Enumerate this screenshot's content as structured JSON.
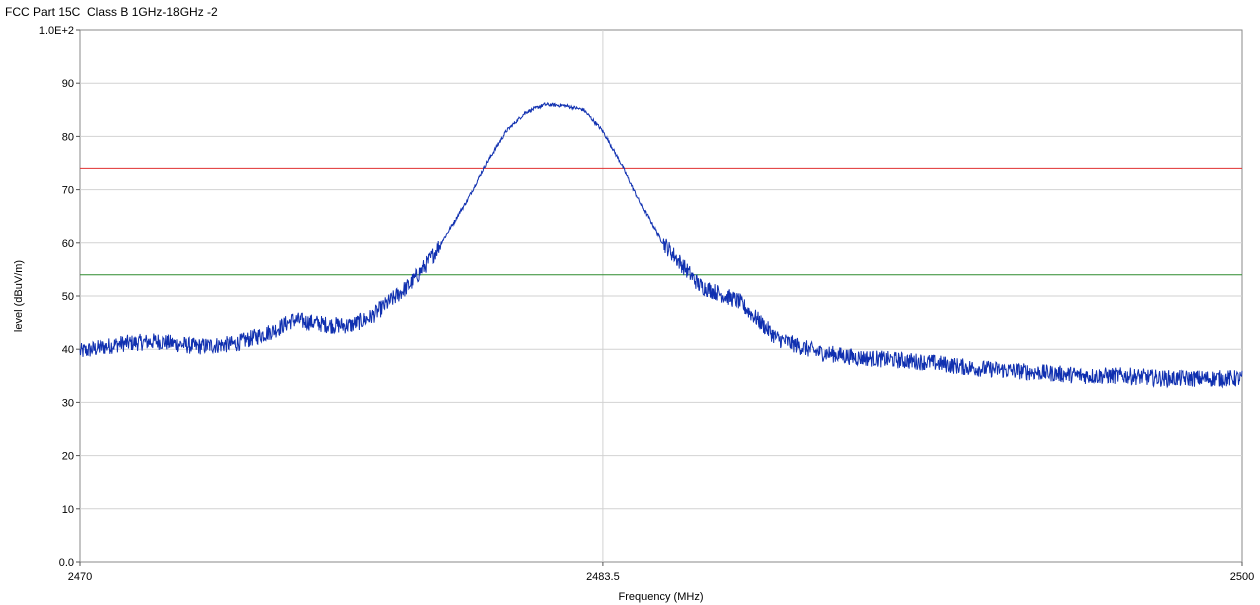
{
  "chart_data": {
    "type": "line",
    "title": "FCC Part 15C  Class B 1GHz-18GHz -2",
    "xlabel": "Frequency (MHz)",
    "ylabel": "level (dBuV/m)",
    "xlim": [
      2470,
      2500
    ],
    "ylim": [
      0,
      100
    ],
    "x_ticks": [
      2470,
      2483.5,
      2500
    ],
    "x_tick_labels": [
      "2470",
      "2483.5",
      "2500"
    ],
    "y_ticks": [
      0,
      10,
      20,
      30,
      40,
      50,
      60,
      70,
      80,
      90,
      100
    ],
    "y_tick_labels": [
      "0.0",
      "10",
      "20",
      "30",
      "40",
      "50",
      "60",
      "70",
      "80",
      "90",
      "1.0E+2"
    ],
    "grid": true,
    "limit_lines": [
      {
        "value": 74,
        "color": "#e03030"
      },
      {
        "value": 54,
        "color": "#2e8b2e"
      }
    ],
    "series": [
      {
        "color": "#1030b0",
        "x": [
          2470,
          2471,
          2472,
          2473,
          2474,
          2475,
          2475.5,
          2476,
          2476.5,
          2477,
          2477.5,
          2478,
          2478.5,
          2479,
          2479.5,
          2480,
          2480.5,
          2481,
          2481.5,
          2482,
          2482.5,
          2483,
          2483.5,
          2484,
          2484.5,
          2485,
          2486,
          2487,
          2488,
          2489,
          2490,
          2491,
          2492,
          2493,
          2494,
          2495,
          2496,
          2497,
          2498,
          2499,
          2500
        ],
        "y": [
          39.5,
          41,
          41.5,
          40.5,
          41,
          43.5,
          45.5,
          45,
          44.5,
          44.5,
          46,
          49,
          52,
          56.5,
          62,
          68,
          75,
          81,
          84.5,
          86,
          85.8,
          85,
          81,
          74.5,
          67,
          60.5,
          52,
          49,
          42,
          39.5,
          38.5,
          38,
          37.5,
          36.5,
          36,
          35.5,
          35,
          35,
          34.5,
          34.5,
          34.5
        ]
      }
    ]
  }
}
